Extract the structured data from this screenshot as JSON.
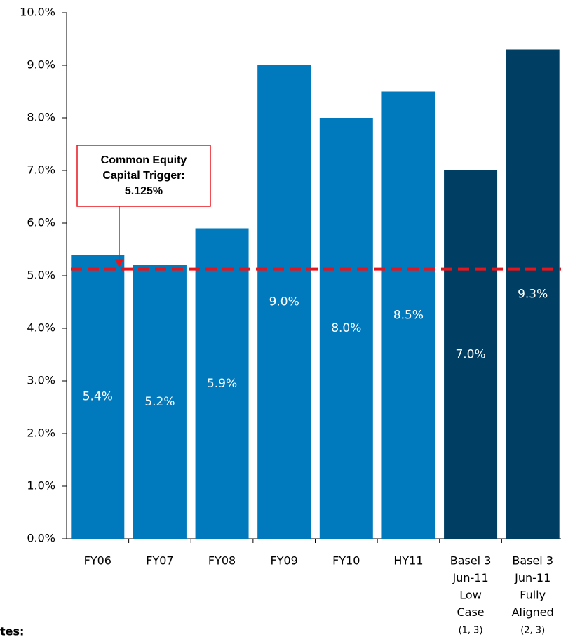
{
  "chart_data": {
    "type": "bar",
    "categories": [
      [
        "FY06"
      ],
      [
        "FY07"
      ],
      [
        "FY08"
      ],
      [
        "FY09"
      ],
      [
        "FY10"
      ],
      [
        "HY11"
      ],
      [
        "Basel 3",
        "Jun-11",
        "Low",
        "Case"
      ],
      [
        "Basel 3",
        "Jun-11",
        "Fully",
        "Aligned"
      ]
    ],
    "category_notes": [
      null,
      null,
      null,
      null,
      null,
      null,
      "(1, 3)",
      "(2, 3)"
    ],
    "values": [
      5.4,
      5.2,
      5.9,
      9.0,
      8.0,
      8.5,
      7.0,
      9.3
    ],
    "value_labels": [
      "5.4%",
      "5.2%",
      "5.9%",
      "9.0%",
      "8.0%",
      "8.5%",
      "7.0%",
      "9.3%"
    ],
    "colors": [
      "#0079bd",
      "#0079bd",
      "#0079bd",
      "#0079bd",
      "#0079bd",
      "#0079bd",
      "#003e63",
      "#003e63"
    ],
    "ylim": [
      0,
      10
    ],
    "yticks": [
      {
        "value": 0,
        "label": "0.0%"
      },
      {
        "value": 1,
        "label": "1.0%"
      },
      {
        "value": 2,
        "label": "2.0%"
      },
      {
        "value": 3,
        "label": "3.0%"
      },
      {
        "value": 4,
        "label": "4.0%"
      },
      {
        "value": 5,
        "label": "5.0%"
      },
      {
        "value": 6,
        "label": "6.0%"
      },
      {
        "value": 7,
        "label": "7.0%"
      },
      {
        "value": 8,
        "label": "8.0%"
      },
      {
        "value": 9,
        "label": "9.0%"
      },
      {
        "value": 10,
        "label": "10.0%"
      }
    ],
    "threshold": {
      "value": 5.125,
      "color": "#e8141c",
      "label": [
        "Common Equity",
        "Capital Trigger:",
        "5.125%"
      ]
    },
    "footer": "tes:"
  }
}
